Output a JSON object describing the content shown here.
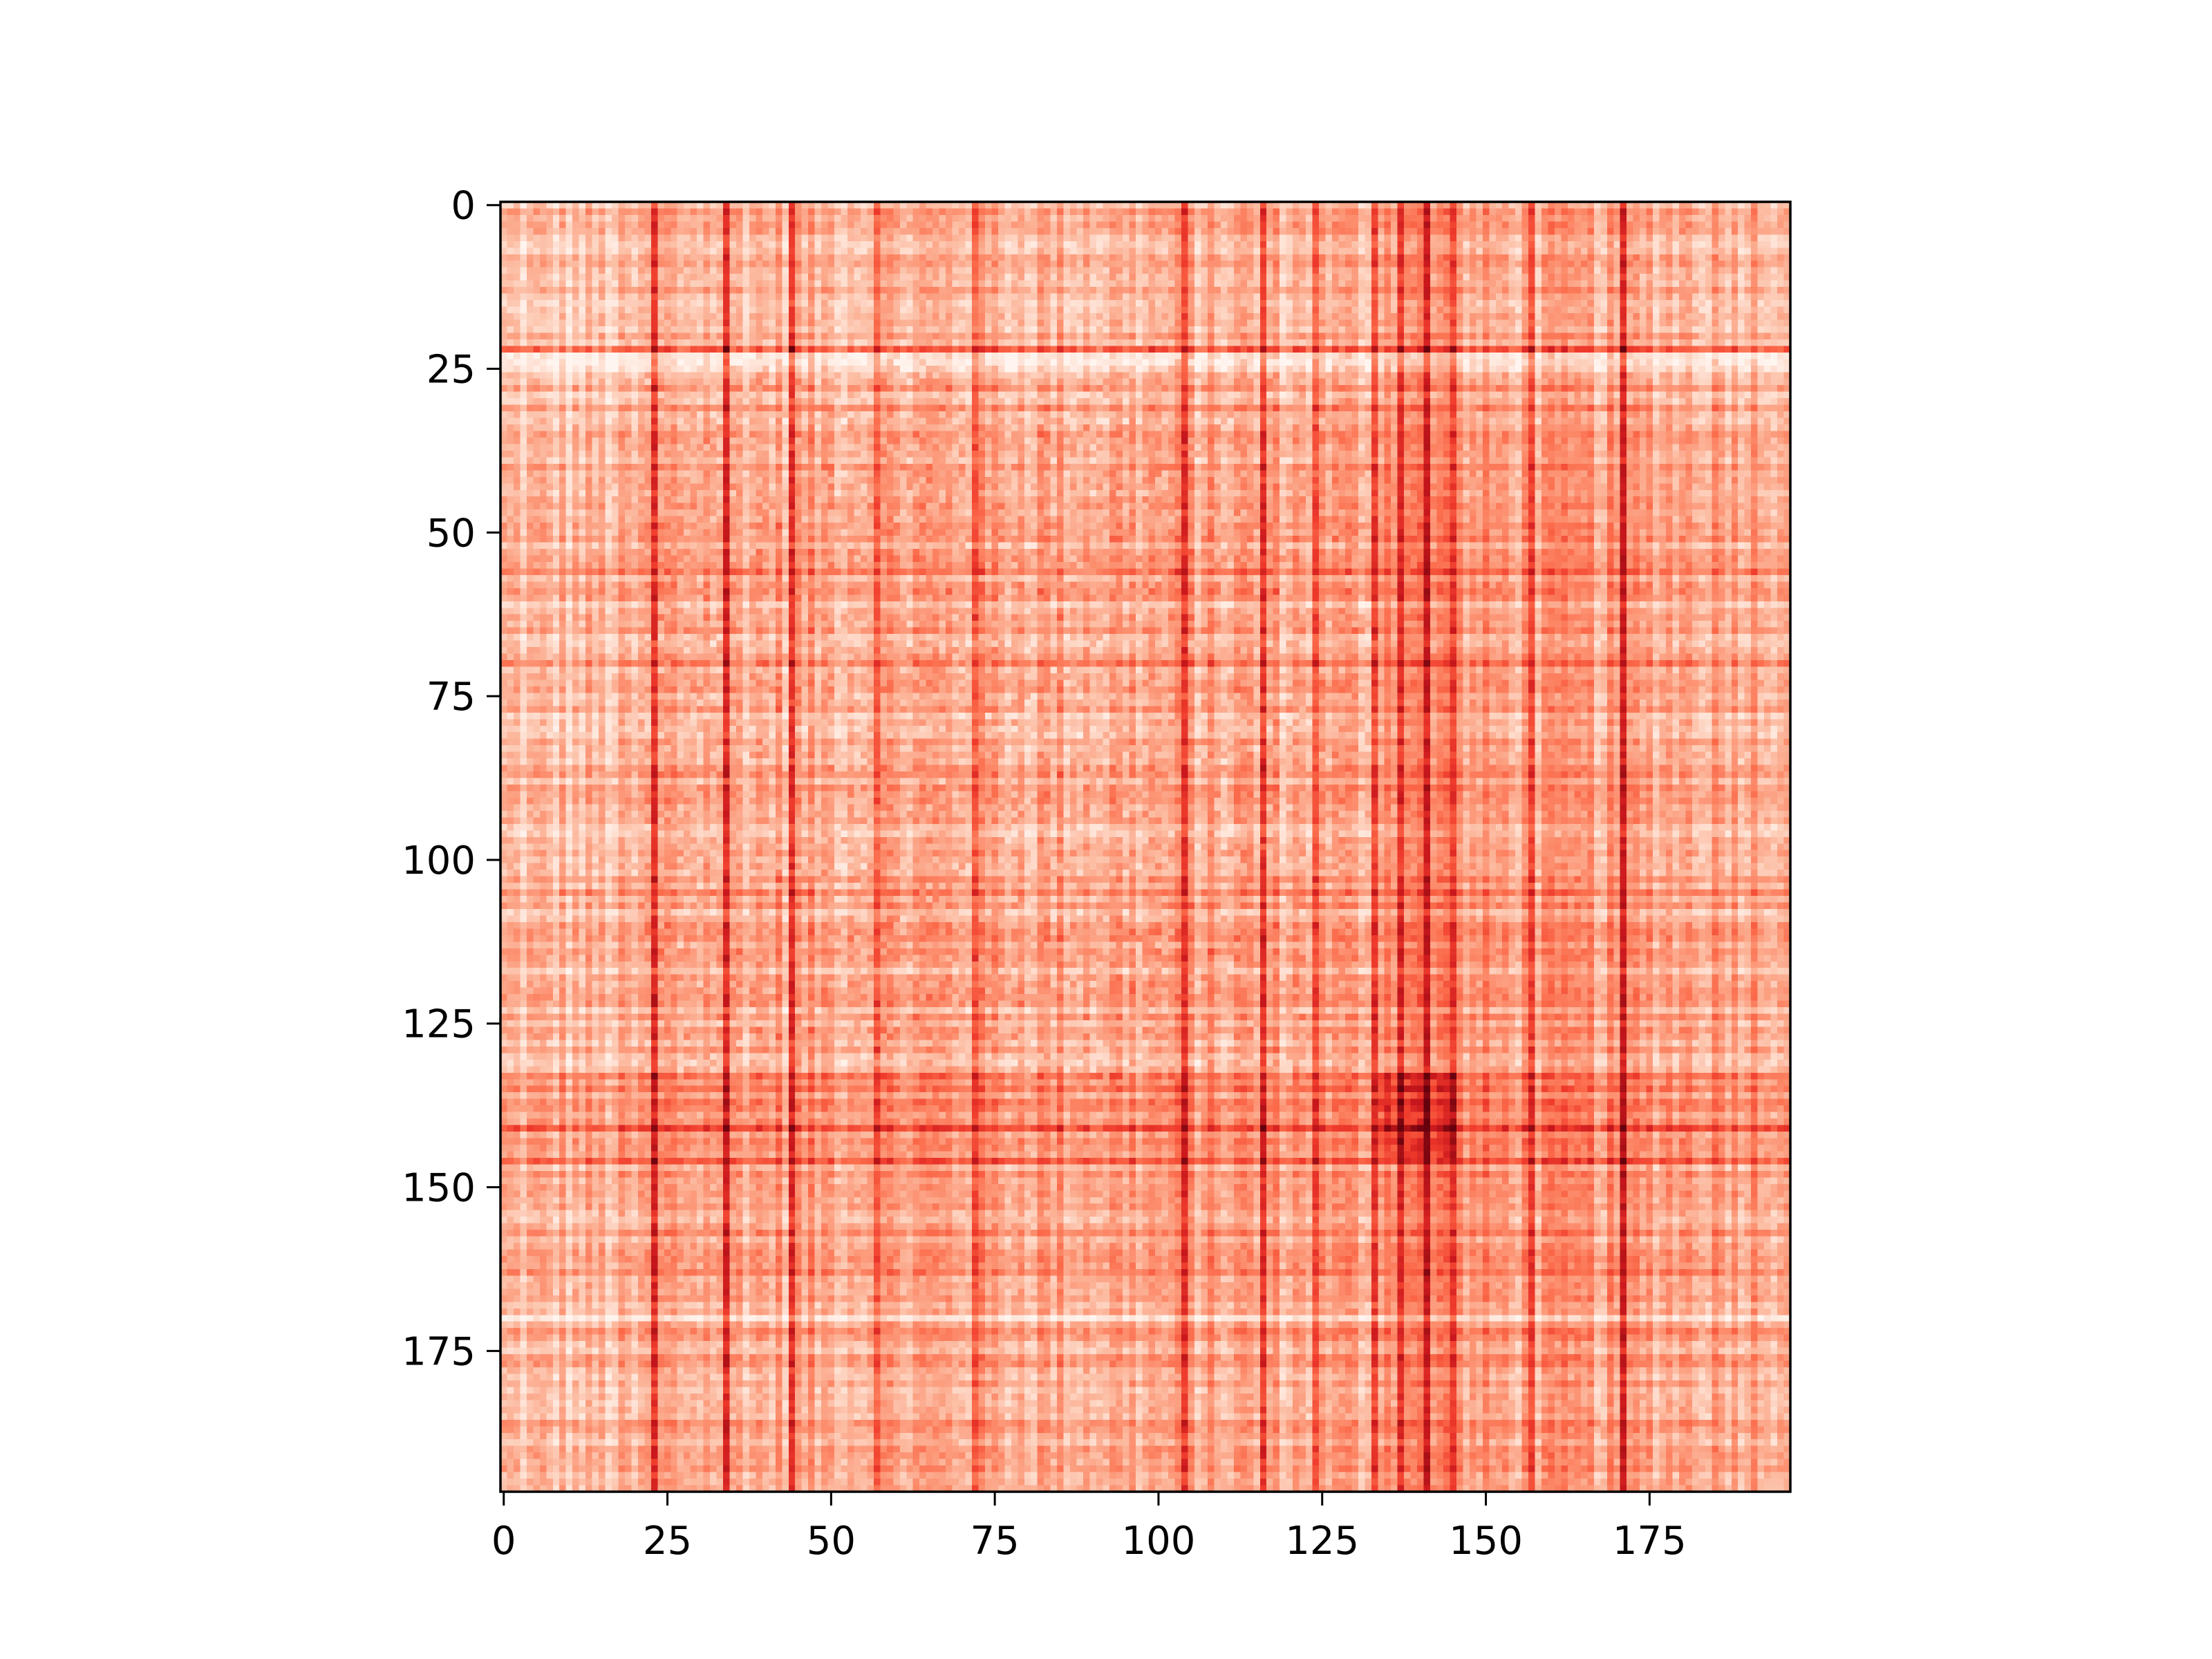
{
  "chart_data": {
    "type": "heatmap",
    "colormap": "Reds",
    "colormap_stops": [
      "#fff5f0",
      "#fee0d2",
      "#fcbba1",
      "#fc9272",
      "#fb6a4a",
      "#ef3b2c",
      "#cb181d",
      "#a50f15",
      "#67000d"
    ],
    "shape": [
      197,
      197
    ],
    "xlim": [
      -0.5,
      196.5
    ],
    "ylim": [
      196.5,
      -0.5
    ],
    "x_ticks": [
      0,
      25,
      50,
      75,
      100,
      125,
      150,
      175
    ],
    "x_tick_labels": [
      "0",
      "25",
      "50",
      "75",
      "100",
      "125",
      "150",
      "175"
    ],
    "y_ticks": [
      0,
      25,
      50,
      75,
      100,
      125,
      150,
      175
    ],
    "y_tick_labels": [
      "0",
      "25",
      "50",
      "75",
      "100",
      "125",
      "150",
      "175"
    ],
    "blocks": [
      {
        "range": [
          0,
          21
        ],
        "intensity": 0.24
      },
      {
        "range": [
          22,
          133
        ],
        "intensity": 0.3
      },
      {
        "range": [
          134,
          145
        ],
        "intensity": 0.5
      },
      {
        "range": [
          146,
          196
        ],
        "intensity": 0.34
      }
    ],
    "hot_columns": [
      23,
      34,
      44,
      57,
      72,
      104,
      116,
      124,
      133,
      137,
      141,
      145,
      157,
      171
    ],
    "hot_rows": [
      22,
      31,
      56,
      70,
      105,
      133,
      141,
      146,
      157,
      163
    ],
    "pale_rows": [
      23,
      24,
      25,
      145,
      158,
      170
    ],
    "max_intensity_region": {
      "rows": [
        133,
        145
      ],
      "cols": [
        134,
        145
      ]
    }
  }
}
